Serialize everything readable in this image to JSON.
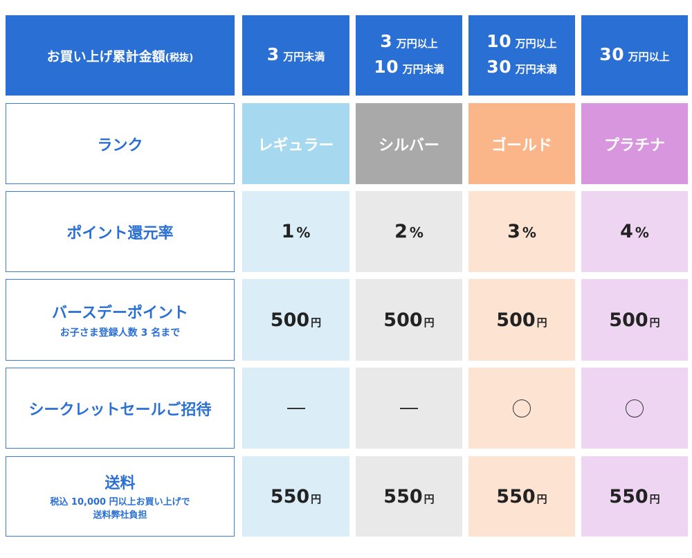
{
  "header": {
    "label_main": "お買い上げ累計金額",
    "label_sub": "(税抜)",
    "tiers": [
      {
        "lines": [
          {
            "num": "3",
            "unit": "万円未満"
          }
        ]
      },
      {
        "lines": [
          {
            "num": "3",
            "unit": "万円以上"
          },
          {
            "num": "10",
            "unit": "万円未満"
          }
        ]
      },
      {
        "lines": [
          {
            "num": "10",
            "unit": "万円以上"
          },
          {
            "num": "30",
            "unit": "万円未満"
          }
        ]
      },
      {
        "lines": [
          {
            "num": "30",
            "unit": "万円以上"
          }
        ]
      }
    ]
  },
  "rank": {
    "label": "ランク",
    "names": [
      "レギュラー",
      "シルバー",
      "ゴールド",
      "プラチナ"
    ]
  },
  "point_rate": {
    "label": "ポイント還元率",
    "values": [
      {
        "num": "1",
        "unit": "%"
      },
      {
        "num": "2",
        "unit": "%"
      },
      {
        "num": "3",
        "unit": "%"
      },
      {
        "num": "4",
        "unit": "%"
      }
    ]
  },
  "birthday": {
    "label": "バースデーポイント",
    "sub": "お子さま登録人数 3 名まで",
    "values": [
      {
        "num": "500",
        "unit": "円"
      },
      {
        "num": "500",
        "unit": "円"
      },
      {
        "num": "500",
        "unit": "円"
      },
      {
        "num": "500",
        "unit": "円"
      }
    ]
  },
  "secret_sale": {
    "label": "シークレットセールご招待",
    "marks": [
      "dash",
      "dash",
      "circle",
      "circle"
    ]
  },
  "shipping": {
    "label": "送料",
    "sub1": "税込 10,000 円以上お買い上げで",
    "sub2": "送料弊社負担",
    "values": [
      {
        "num": "550",
        "unit": "円"
      },
      {
        "num": "550",
        "unit": "円"
      },
      {
        "num": "550",
        "unit": "円"
      },
      {
        "num": "550",
        "unit": "円"
      }
    ]
  },
  "colors": {
    "header_blue": "#2a6fd4",
    "label_text": "#2a6fd4",
    "rank_bg": [
      "#a6d8ef",
      "#a9a9a9",
      "#fab589",
      "#d796de"
    ],
    "col_light_bg": [
      "#dbeef8",
      "#e9e9e9",
      "#fde3d1",
      "#eed6f2"
    ]
  }
}
